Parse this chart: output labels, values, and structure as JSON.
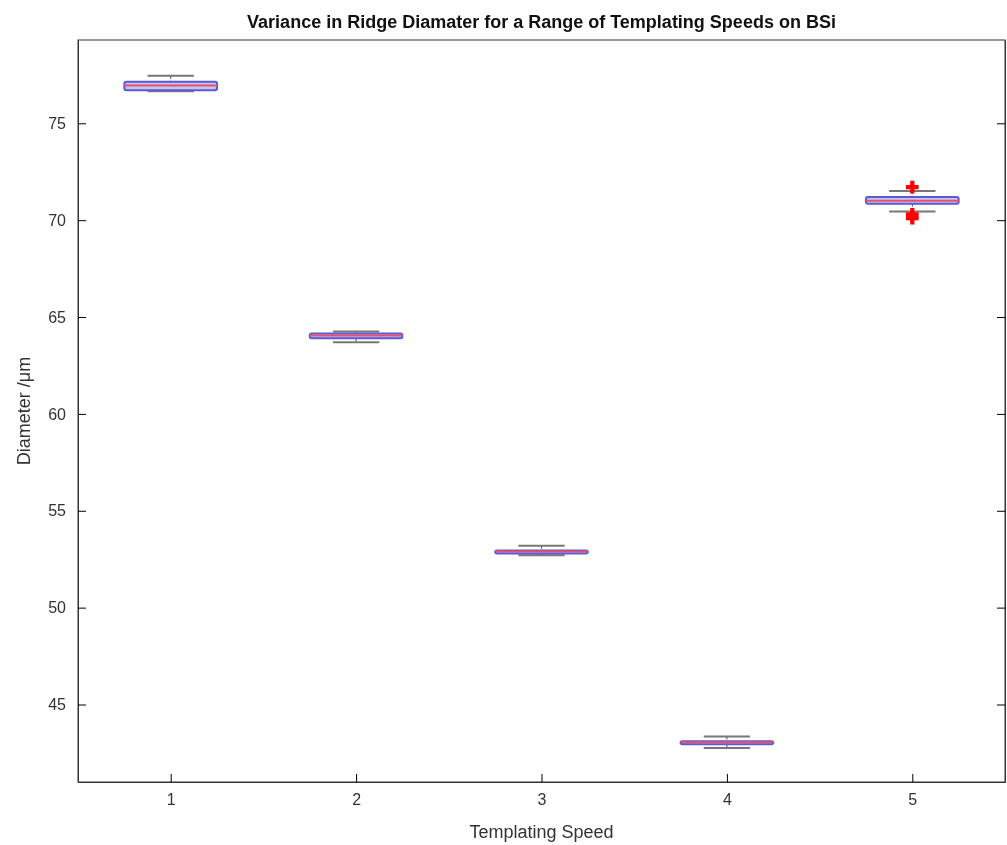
{
  "chart_data": {
    "type": "box",
    "title": "Variance in Ridge Diamater for a Range of Templating Speeds on BSi",
    "xlabel": "Templating Speed",
    "ylabel": "Diameter /μm",
    "categories": [
      "1",
      "2",
      "3",
      "4",
      "5"
    ],
    "color": "#5a5ad8",
    "boxes": [
      {
        "low": 76.65,
        "q1": 76.7,
        "median": 76.95,
        "q3": 77.15,
        "high": 77.45
      },
      {
        "low": 63.7,
        "q1": 63.9,
        "median": 64.05,
        "q3": 64.15,
        "high": 64.25
      },
      {
        "low": 52.7,
        "q1": 52.8,
        "median": 52.9,
        "q3": 52.95,
        "high": 53.2
      },
      {
        "low": 42.75,
        "q1": 42.95,
        "median": 43.05,
        "q3": 43.1,
        "high": 43.35
      },
      {
        "low": 70.45,
        "q1": 70.85,
        "median": 71.0,
        "q3": 71.2,
        "high": 71.5,
        "outliers": [
          71.7,
          70.3,
          70.1
        ]
      }
    ],
    "ylim": [
      41,
      79.3
    ],
    "yticks": [
      45,
      50,
      55,
      60,
      65,
      70,
      75
    ]
  }
}
